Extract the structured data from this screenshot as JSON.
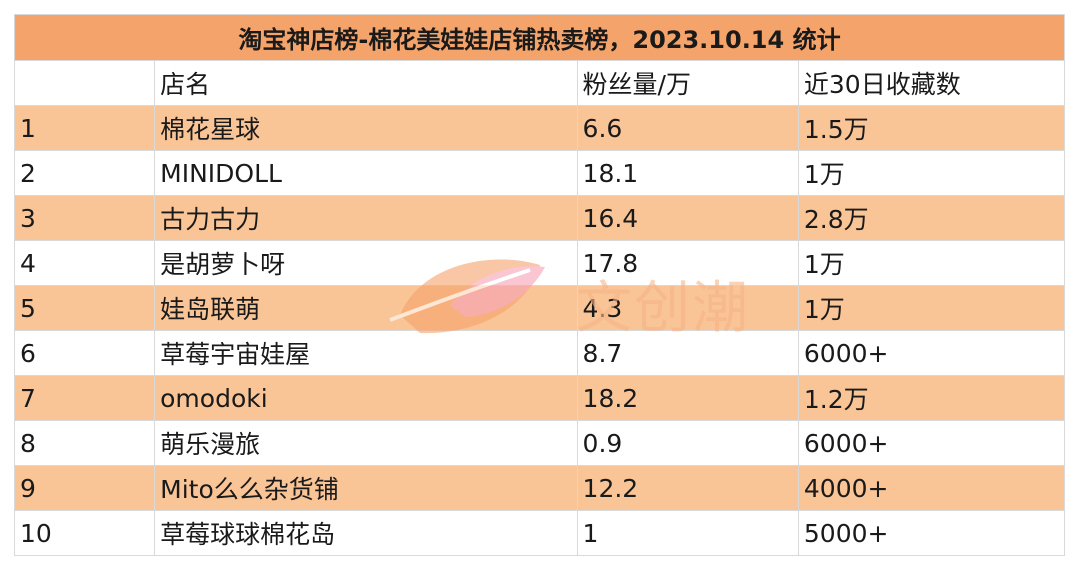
{
  "title": "淘宝神店榜-棉花美娃娃店铺热卖榜，2023.10.14 统计",
  "columns": [
    "",
    "店名",
    "粉丝量/万",
    "近30日收藏数"
  ],
  "rows": [
    [
      "1",
      "棉花星球",
      "6.6",
      "1.5万"
    ],
    [
      "2",
      "MINIDOLL",
      "18.1",
      "1万"
    ],
    [
      "3",
      "古力古力",
      "16.4",
      "2.8万"
    ],
    [
      "4",
      "是胡萝卜呀",
      "17.8",
      "1万"
    ],
    [
      "5",
      "娃岛联萌",
      "4.3",
      "1万"
    ],
    [
      "6",
      "草莓宇宙娃屋",
      "8.7",
      "6000+"
    ],
    [
      "7",
      "omodoki",
      "18.2",
      "1.2万"
    ],
    [
      "8",
      "萌乐漫旅",
      "0.9",
      "6000+"
    ],
    [
      "9",
      "Mito么么杂货铺",
      "12.2",
      "4000+"
    ],
    [
      "10",
      "草莓球球棉花岛",
      "1",
      "5000+"
    ]
  ],
  "watermark": {
    "text": "文创潮",
    "icon": "leaf-logo-icon",
    "colors": {
      "orange": "#f6a36a",
      "pink": "#f7a1b4"
    }
  },
  "colors": {
    "title_bg": "#f4a46a",
    "stripe_bg": "#f9c496",
    "border": "#d9d9d9"
  }
}
